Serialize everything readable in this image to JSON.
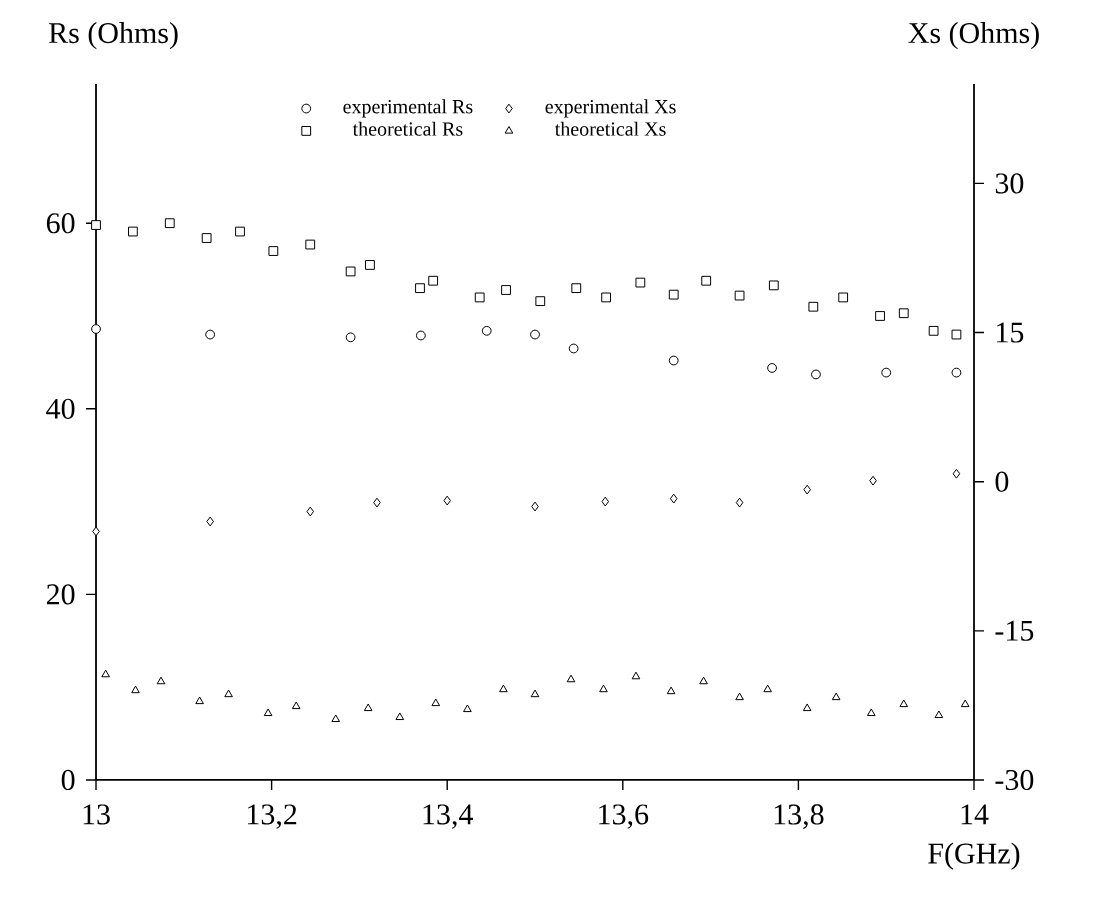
{
  "chart_data": {
    "type": "scatter",
    "ylabel": "Rs  (Ohms)",
    "y2label": "Xs  (Ohms)",
    "xlabel": "F(GHz)",
    "xlim": [
      13,
      14
    ],
    "xticks": [
      13,
      {
        "value": 13.2,
        "label": "13,2"
      },
      {
        "value": 13.4,
        "label": "13,4"
      },
      {
        "value": 13.6,
        "label": "13,6"
      },
      {
        "value": 13.8,
        "label": "13,8"
      },
      14
    ],
    "ylim": [
      0,
      75
    ],
    "yticks": [
      0,
      20,
      40,
      60
    ],
    "y2lim": [
      -30,
      40
    ],
    "y2ticks": [
      -30,
      -15,
      0,
      15,
      30
    ],
    "legend": "top",
    "grid": false,
    "series": [
      {
        "name": "experimental Rs",
        "color": "#000000",
        "marker": "circle",
        "x": [
          13.0,
          13.13,
          13.29,
          13.37,
          13.445,
          13.5,
          13.544,
          13.658,
          13.77,
          13.82,
          13.9,
          13.98
        ],
        "values": [
          48.6,
          48.0,
          47.7,
          47.9,
          48.4,
          48.0,
          46.5,
          45.2,
          44.4,
          43.7,
          43.9,
          43.9
        ]
      },
      {
        "name": "experimental Xs",
        "color": "#000000",
        "marker": "diamond",
        "axis": "y2",
        "x": [
          13.0,
          13.13,
          13.244,
          13.32,
          13.4,
          13.5,
          13.58,
          13.658,
          13.733,
          13.81,
          13.885,
          13.98
        ],
        "values": [
          -5.0,
          -4.0,
          -3.0,
          -2.1,
          -1.9,
          -2.5,
          -2.0,
          -1.7,
          -2.1,
          -0.8,
          0.1,
          0.8
        ]
      },
      {
        "name": "theoretical Rs",
        "color": "#000000",
        "marker": "square",
        "x": [
          13.0,
          13.042,
          13.084,
          13.126,
          13.164,
          13.202,
          13.244,
          13.29,
          13.312,
          13.369,
          13.384,
          13.437,
          13.467,
          13.506,
          13.547,
          13.581,
          13.62,
          13.658,
          13.695,
          13.733,
          13.772,
          13.817,
          13.851,
          13.893,
          13.92,
          13.954,
          13.98
        ],
        "values": [
          59.8,
          59.1,
          60.0,
          58.4,
          59.1,
          57.0,
          57.7,
          54.8,
          55.5,
          53.0,
          53.8,
          52.0,
          52.8,
          51.6,
          53.0,
          52.0,
          53.6,
          52.3,
          53.8,
          52.2,
          53.3,
          51.0,
          52.0,
          50.0,
          50.3,
          48.4,
          48.0
        ]
      },
      {
        "name": "theoretical Xs",
        "color": "#000000",
        "marker": "triangle",
        "axis": "y2",
        "x": [
          13.011,
          13.045,
          13.074,
          13.118,
          13.151,
          13.196,
          13.228,
          13.273,
          13.31,
          13.346,
          13.387,
          13.423,
          13.464,
          13.5,
          13.541,
          13.578,
          13.615,
          13.655,
          13.692,
          13.733,
          13.765,
          13.81,
          13.843,
          13.883,
          13.92,
          13.96,
          13.99
        ],
        "values": [
          -19.4,
          -21.0,
          -20.1,
          -22.1,
          -21.4,
          -23.3,
          -22.6,
          -23.9,
          -22.8,
          -23.7,
          -22.3,
          -22.9,
          -20.9,
          -21.4,
          -19.9,
          -20.9,
          -19.6,
          -21.1,
          -20.1,
          -21.7,
          -20.9,
          -22.8,
          -21.7,
          -23.3,
          -22.4,
          -23.5,
          -22.4
        ]
      }
    ]
  }
}
